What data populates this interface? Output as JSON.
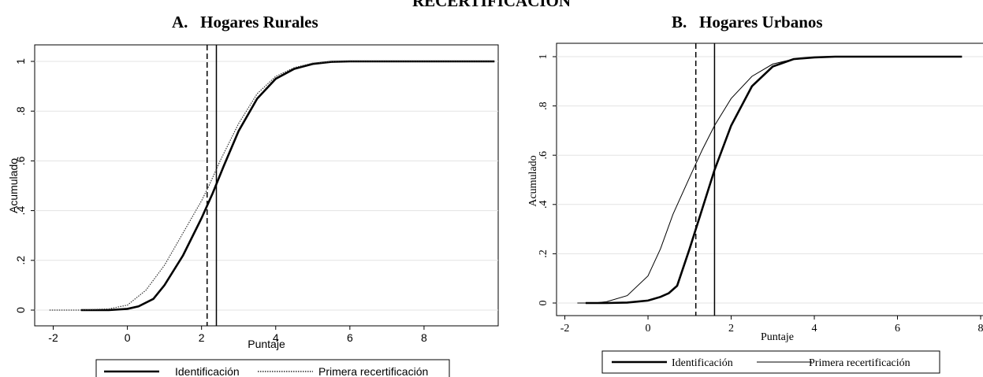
{
  "figure_title": "RECERTIFICACIÓN",
  "chart_data": [
    {
      "type": "line",
      "title": "A.   Hogares Rurales",
      "xlabel": "Puntaje",
      "ylabel": "Acumulado",
      "xlim": [
        -2.5,
        10
      ],
      "ylim": [
        0,
        1
      ],
      "xticks": [
        -2,
        0,
        2,
        4,
        6,
        8
      ],
      "xtick_labels": [
        "-2",
        "0",
        "2",
        "4",
        "6",
        "8"
      ],
      "yticks": [
        0,
        0.2,
        0.4,
        0.6,
        0.8,
        1
      ],
      "ytick_labels": [
        "0",
        ".2",
        ".4",
        ".6",
        ".8",
        "1"
      ],
      "grid": "horizontal",
      "legend": "bottom",
      "vertical_lines": [
        {
          "x": 2.15,
          "style": "dashed"
        },
        {
          "x": 2.4,
          "style": "solid"
        }
      ],
      "series": [
        {
          "name": "Identificación",
          "style": "solid-thick",
          "x": [
            -1.25,
            -0.5,
            0,
            0.3,
            0.7,
            1.0,
            1.5,
            2.0,
            2.3,
            2.6,
            3.0,
            3.5,
            4.0,
            4.5,
            5.0,
            5.5,
            6.0,
            7.0,
            8.0,
            9.0,
            9.9
          ],
          "y": [
            0,
            0,
            0.005,
            0.015,
            0.045,
            0.1,
            0.22,
            0.37,
            0.47,
            0.58,
            0.72,
            0.85,
            0.93,
            0.97,
            0.99,
            0.998,
            1,
            1,
            1,
            1,
            1
          ]
        },
        {
          "name": "Primera recertificación",
          "style": "dotted",
          "x": [
            -2.1,
            -1.25,
            -0.5,
            0,
            0.5,
            1.0,
            1.5,
            2.0,
            2.2,
            2.5,
            3.0,
            3.5,
            4.0,
            4.5,
            5.0,
            5.5,
            6.0,
            7.0,
            8.0,
            9.9
          ],
          "y": [
            0,
            0,
            0.005,
            0.02,
            0.08,
            0.18,
            0.31,
            0.44,
            0.5,
            0.6,
            0.75,
            0.87,
            0.94,
            0.975,
            0.993,
            0.999,
            1,
            1,
            1,
            1
          ]
        }
      ]
    },
    {
      "type": "line",
      "title": "B.   Hogares Urbanos",
      "xlabel": "Puntaje",
      "ylabel": "Acumulado",
      "xlim": [
        -2.2,
        8
      ],
      "ylim": [
        0,
        1
      ],
      "xticks": [
        -2,
        0,
        2,
        4,
        6,
        8
      ],
      "xtick_labels": [
        "-2",
        "0",
        "2",
        "4",
        "6",
        "8"
      ],
      "yticks": [
        0,
        0.2,
        0.4,
        0.6,
        0.8,
        1
      ],
      "ytick_labels": [
        "0",
        ".2",
        ".4",
        ".6",
        ".8",
        "1"
      ],
      "grid": "horizontal",
      "legend": "bottom",
      "vertical_lines": [
        {
          "x": 1.15,
          "style": "dashed"
        },
        {
          "x": 1.6,
          "style": "solid"
        }
      ],
      "series": [
        {
          "name": "Identificación",
          "style": "solid-thick",
          "x": [
            -1.5,
            -1.0,
            -0.5,
            0,
            0.3,
            0.5,
            0.7,
            1.0,
            1.3,
            1.6,
            2.0,
            2.5,
            3.0,
            3.5,
            4.0,
            4.5,
            5.0,
            6.0,
            7.0,
            7.55
          ],
          "y": [
            0,
            0,
            0.002,
            0.01,
            0.025,
            0.04,
            0.07,
            0.22,
            0.38,
            0.54,
            0.72,
            0.88,
            0.96,
            0.99,
            0.997,
            1,
            1,
            1,
            1,
            1
          ]
        },
        {
          "name": "Primera recertificación",
          "style": "thin",
          "x": [
            -1.7,
            -1.3,
            -1.0,
            -0.5,
            0,
            0.3,
            0.6,
            1.0,
            1.3,
            1.6,
            2.0,
            2.5,
            3.0,
            3.5,
            4.0,
            4.5,
            5.0,
            6.0,
            7.0,
            7.55
          ],
          "y": [
            0,
            0,
            0.005,
            0.03,
            0.11,
            0.22,
            0.36,
            0.51,
            0.62,
            0.72,
            0.83,
            0.92,
            0.97,
            0.99,
            0.997,
            1,
            1,
            1,
            1,
            1
          ]
        }
      ]
    }
  ]
}
